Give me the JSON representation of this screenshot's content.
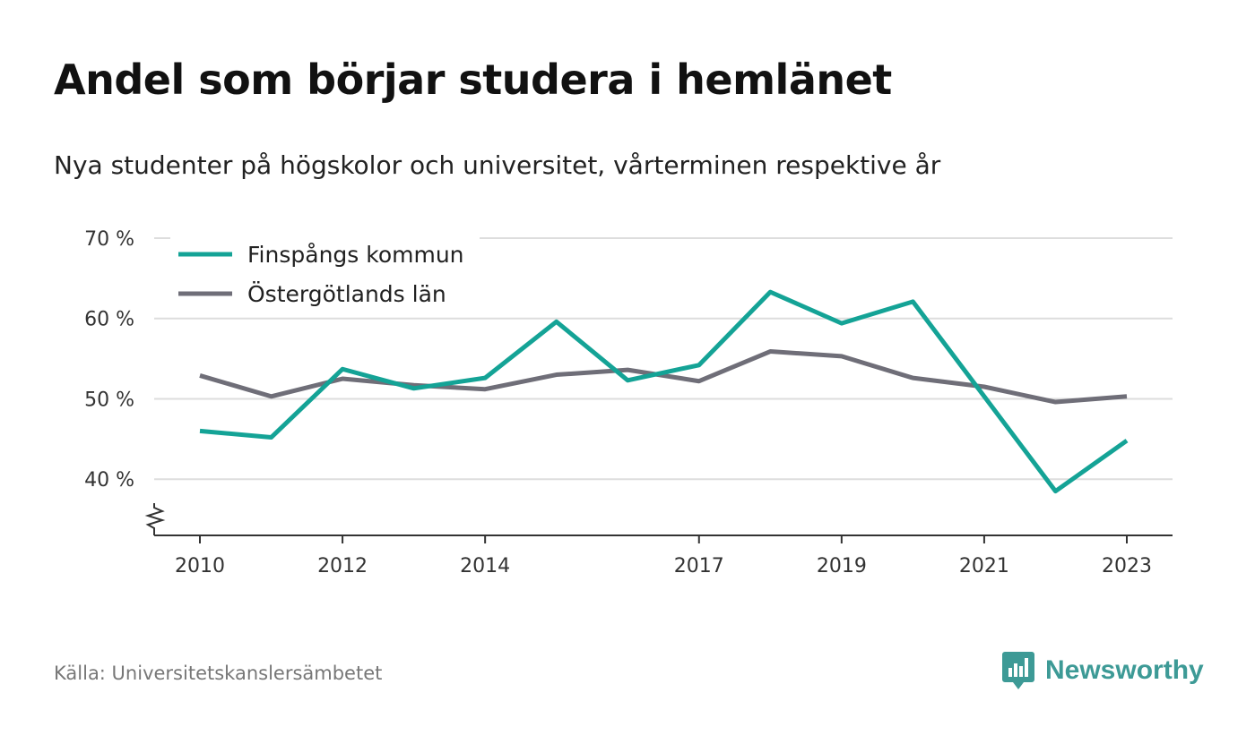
{
  "title": "Andel som börjar studera i hemlänet",
  "subtitle": "Nya studenter på högskolor och universitet, vårterminen respektive år",
  "source": "Källa: Universitetskanslersämbetet",
  "brand": "Newsworthy",
  "chart_data": {
    "type": "line",
    "x": [
      2010,
      2011,
      2012,
      2013,
      2014,
      2015,
      2016,
      2017,
      2018,
      2019,
      2020,
      2021,
      2022,
      2023
    ],
    "x_tick_labels": [
      "2010",
      "2012",
      "2014",
      "2017",
      "2019",
      "2021",
      "2023"
    ],
    "y_ticks": [
      40,
      50,
      60,
      70
    ],
    "y_tick_labels": [
      "40 %",
      "50 %",
      "60 %",
      "70 %"
    ],
    "ylim": [
      33,
      70
    ],
    "y_axis_break": true,
    "grid": true,
    "legend_position": "top-left",
    "series": [
      {
        "name": "Finspångs kommun",
        "color": "#14a396",
        "values": [
          46.0,
          45.2,
          53.7,
          51.3,
          52.6,
          59.6,
          52.3,
          54.2,
          63.3,
          59.4,
          62.1,
          50.3,
          38.5,
          44.8
        ]
      },
      {
        "name": "Östergötlands län",
        "color": "#6f6e78",
        "values": [
          52.9,
          50.3,
          52.5,
          51.7,
          51.2,
          53.0,
          53.6,
          52.2,
          55.9,
          55.3,
          52.6,
          51.5,
          49.6,
          50.3
        ]
      }
    ],
    "xlabel": "",
    "ylabel": ""
  }
}
